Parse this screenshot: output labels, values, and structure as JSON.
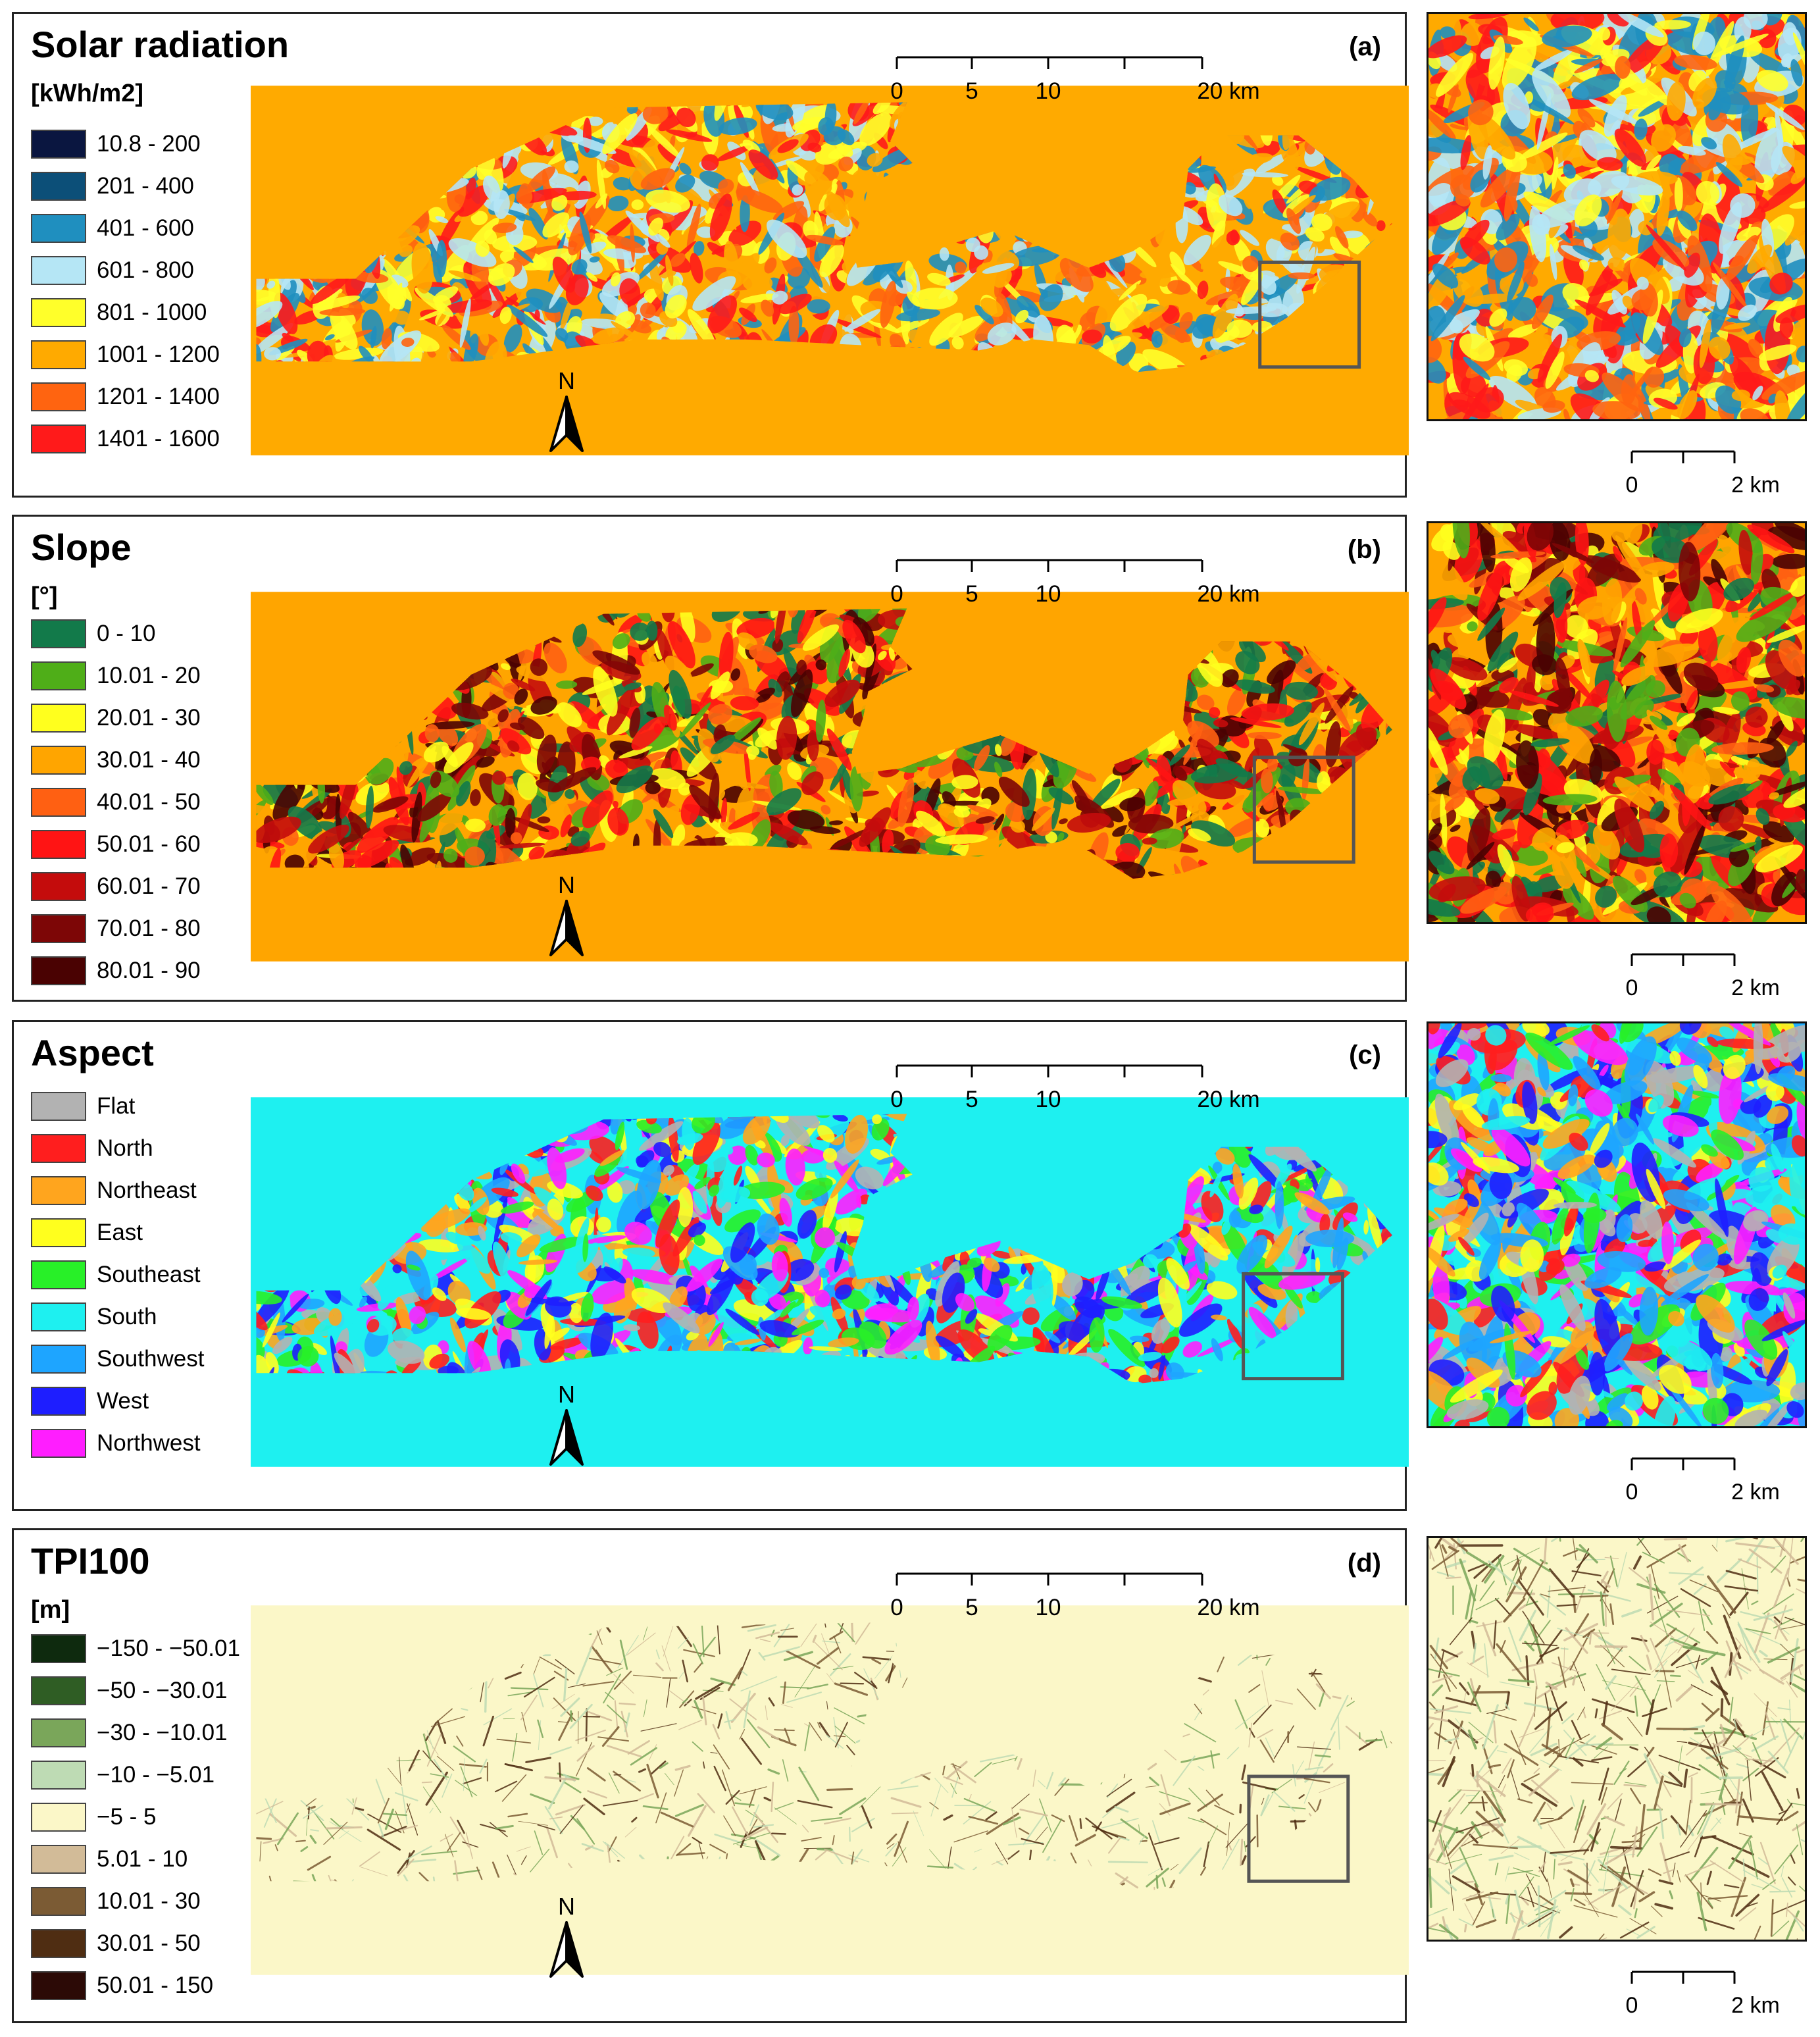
{
  "scale_bar": {
    "ticks": [
      "0",
      "5",
      "10",
      "20 km"
    ]
  },
  "inset_scale_bar": {
    "ticks": [
      "0",
      "2 km"
    ]
  },
  "north_arrow": {
    "label": "N"
  },
  "panels": [
    {
      "label": "(a)",
      "title": "Solar radiation",
      "unit": "[kWh/m2]",
      "legend": [
        {
          "text": "10.8 - 200",
          "color": "#0a1640"
        },
        {
          "text": "201 - 400",
          "color": "#0c4f78"
        },
        {
          "text": "401 - 600",
          "color": "#1f8fbf"
        },
        {
          "text": "601 - 800",
          "color": "#b5e6f5"
        },
        {
          "text": "801 - 1000",
          "color": "#ffff2a"
        },
        {
          "text": "1001 - 1200",
          "color": "#ffaa00"
        },
        {
          "text": "1201 - 1400",
          "color": "#ff6410"
        },
        {
          "text": "1401 - 1600",
          "color": "#ff1a1a"
        }
      ]
    },
    {
      "label": "(b)",
      "title": "Slope",
      "unit": "[°]",
      "legend": [
        {
          "text": "0 - 10",
          "color": "#127a4a"
        },
        {
          "text": "10.01 - 20",
          "color": "#4fae18"
        },
        {
          "text": "20.01 - 30",
          "color": "#ffff1e"
        },
        {
          "text": "30.01 - 40",
          "color": "#ffa500"
        },
        {
          "text": "40.01 - 50",
          "color": "#ff6012"
        },
        {
          "text": "50.01 - 60",
          "color": "#ff1414"
        },
        {
          "text": "60.01 - 70",
          "color": "#c40c0c"
        },
        {
          "text": "70.01 - 80",
          "color": "#7d0606"
        },
        {
          "text": "80.01 - 90",
          "color": "#4a0202"
        }
      ]
    },
    {
      "label": "(c)",
      "title": "Aspect",
      "unit": "",
      "legend": [
        {
          "text": "Flat",
          "color": "#b2b2b2"
        },
        {
          "text": "North",
          "color": "#ff1e1e"
        },
        {
          "text": "Northeast",
          "color": "#ffa51e"
        },
        {
          "text": "East",
          "color": "#ffff1e"
        },
        {
          "text": "Southeast",
          "color": "#28f028"
        },
        {
          "text": "South",
          "color": "#1ef0f0"
        },
        {
          "text": "Southwest",
          "color": "#1ea5ff"
        },
        {
          "text": "West",
          "color": "#1e1eff"
        },
        {
          "text": "Northwest",
          "color": "#ff1eff"
        }
      ]
    },
    {
      "label": "(d)",
      "title": "TPI100",
      "unit": "[m]",
      "legend": [
        {
          "text": "−150 - −50.01",
          "color": "#0e2a0e"
        },
        {
          "text": "−50 - −30.01",
          "color": "#2f5d24"
        },
        {
          "text": "−30 - −10.01",
          "color": "#7aa65a"
        },
        {
          "text": "−10 - −5.01",
          "color": "#bedbb4"
        },
        {
          "text": "−5 - 5",
          "color": "#fbf7c8"
        },
        {
          "text": "5.01 - 10",
          "color": "#d2bb98"
        },
        {
          "text": "10.01 - 30",
          "color": "#7b5b34"
        },
        {
          "text": "30.01 - 50",
          "color": "#4f2d12"
        },
        {
          "text": "50.01 - 150",
          "color": "#2c0a06"
        }
      ]
    }
  ]
}
